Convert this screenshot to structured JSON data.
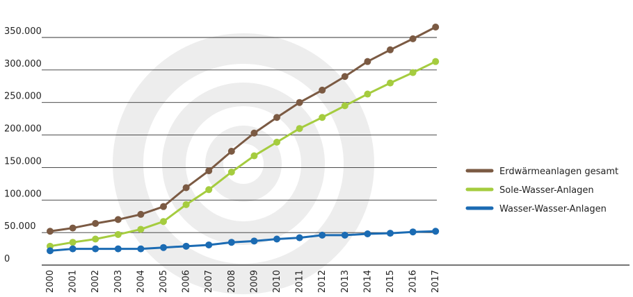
{
  "chart_data": {
    "type": "line",
    "title": "",
    "xlabel": "",
    "ylabel": "",
    "ylim": [
      0,
      380000
    ],
    "yticks": [
      {
        "value": 0,
        "label": "0"
      },
      {
        "value": 50000,
        "label": "50.000"
      },
      {
        "value": 100000,
        "label": "100.000"
      },
      {
        "value": 150000,
        "label": "150.000"
      },
      {
        "value": 200000,
        "label": "200.000"
      },
      {
        "value": 250000,
        "label": "250.000"
      },
      {
        "value": 300000,
        "label": "300.000"
      },
      {
        "value": 350000,
        "label": "350.000"
      }
    ],
    "grid": true,
    "legend_position": "right",
    "categories": [
      "2000",
      "2001",
      "2002",
      "2003",
      "2004",
      "2005",
      "2006",
      "2007",
      "2008",
      "2009",
      "2010",
      "2011",
      "2012",
      "2013",
      "2014",
      "2015",
      "2016",
      "2017"
    ],
    "series": [
      {
        "name": "Erdwärmeanlagen gesamt",
        "color": "#7b5a43",
        "values": [
          52000,
          57000,
          64000,
          70000,
          78000,
          90000,
          119000,
          145000,
          175000,
          203000,
          227000,
          250000,
          269000,
          290000,
          313000,
          331000,
          348000,
          366000
        ]
      },
      {
        "name": "Sole-Wasser-Anlagen",
        "color": "#a5cc3f",
        "values": [
          29000,
          35000,
          40000,
          47000,
          55000,
          67000,
          93000,
          116000,
          143000,
          168000,
          189000,
          210000,
          227000,
          245000,
          263000,
          280000,
          296000,
          313000
        ]
      },
      {
        "name": "Wasser-Wasser-Anlagen",
        "color": "#1b6bb3",
        "values": [
          22000,
          25000,
          25000,
          25000,
          25000,
          27000,
          29000,
          31000,
          35000,
          37000,
          40000,
          42000,
          46000,
          46000,
          48000,
          49000,
          51000,
          52000
        ]
      }
    ]
  }
}
